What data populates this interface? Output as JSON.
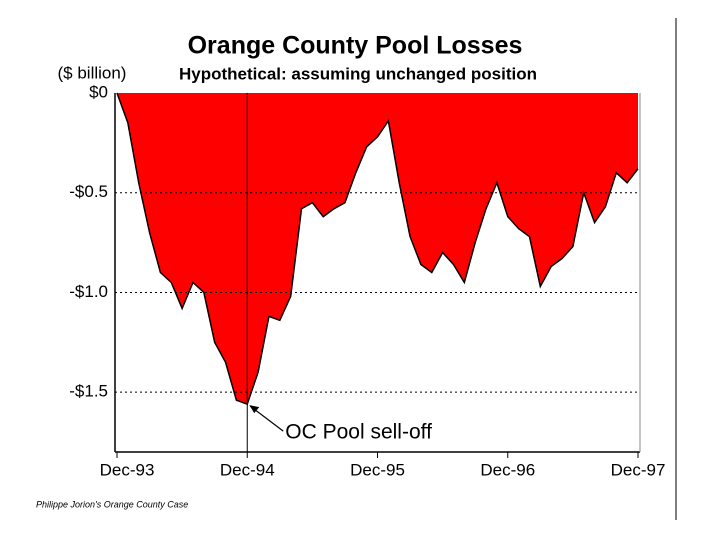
{
  "chart_data": {
    "type": "area",
    "title": "Orange County Pool Losses",
    "subtitle": "Hypothetical: assuming unchanged position",
    "y_label": "($ billion)",
    "annotation": "OC Pool sell-off",
    "source": "Philippe Jorion's Orange County Case",
    "color": "#ff0000",
    "grid": true,
    "x": [
      0,
      1,
      2,
      3,
      4,
      5,
      6,
      7,
      8,
      9,
      10,
      11,
      12,
      13,
      14,
      15,
      16,
      17,
      18,
      19,
      20,
      21,
      22,
      23,
      24,
      25,
      26,
      27,
      28,
      29,
      30,
      31,
      32,
      33,
      34,
      35,
      36,
      37,
      38,
      39,
      40,
      41,
      42,
      43,
      44,
      45,
      46,
      47,
      48
    ],
    "values": [
      0,
      -0.15,
      -0.45,
      -0.7,
      -0.9,
      -0.95,
      -1.08,
      -0.95,
      -1.0,
      -1.25,
      -1.35,
      -1.54,
      -1.56,
      -1.4,
      -1.12,
      -1.14,
      -1.02,
      -0.58,
      -0.55,
      -0.62,
      -0.58,
      -0.55,
      -0.4,
      -0.27,
      -0.22,
      -0.14,
      -0.45,
      -0.72,
      -0.86,
      -0.9,
      -0.8,
      -0.86,
      -0.95,
      -0.75,
      -0.58,
      -0.45,
      -0.62,
      -0.68,
      -0.72,
      -0.97,
      -0.87,
      -0.83,
      -0.77,
      -0.5,
      -0.65,
      -0.57,
      -0.4,
      -0.45,
      -0.38
    ],
    "xlim": [
      0,
      48
    ],
    "xticks": [
      {
        "value": 0,
        "label": "Dec-93"
      },
      {
        "value": 12,
        "label": "Dec-94"
      },
      {
        "value": 24,
        "label": "Dec-95"
      },
      {
        "value": 36,
        "label": "Dec-96"
      },
      {
        "value": 48,
        "label": "Dec-97"
      }
    ],
    "ylim": [
      -1.8,
      0
    ],
    "yticks": [
      {
        "value": 0,
        "label": "$0"
      },
      {
        "value": -0.5,
        "label": "-$0.5"
      },
      {
        "value": -1.0,
        "label": "-$1.0"
      },
      {
        "value": -1.5,
        "label": "-$1.5"
      }
    ],
    "sell_off_x": 12
  }
}
